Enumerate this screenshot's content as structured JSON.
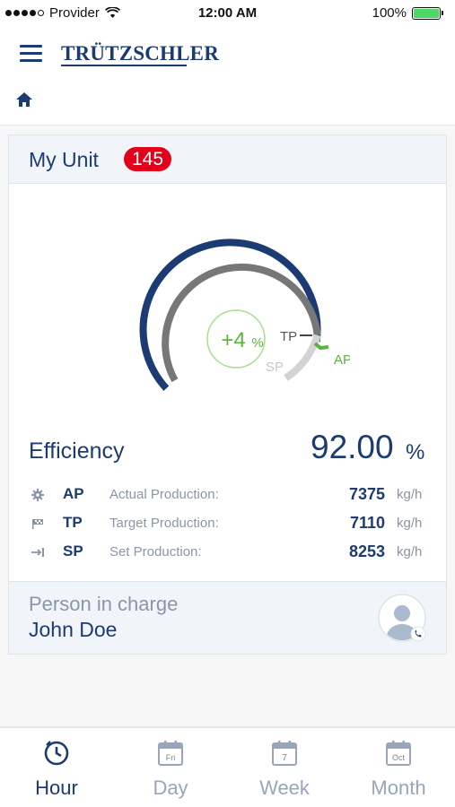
{
  "status_bar": {
    "carrier": "Provider",
    "time": "12:00 AM",
    "battery": "100%"
  },
  "header": {
    "logo": "TRÜTZSCHLER"
  },
  "unit": {
    "title": "My Unit",
    "count": "145",
    "gauge": {
      "delta_label": "+4",
      "delta_unit": "%",
      "tp_label": "TP",
      "sp_label": "SP",
      "ap_label": "AP",
      "outer_arc_color": "#1d3b73",
      "inner_arc_color": "#777777",
      "sp_arc_color": "#d3d3d3",
      "accent_color": "#5cb33c"
    },
    "efficiency": {
      "label": "Efficiency",
      "value": "92.00",
      "unit": "%"
    },
    "production": [
      {
        "icon": "gear-icon",
        "code": "AP",
        "name": "Actual Production:",
        "value": "7375",
        "unit": "kg/h"
      },
      {
        "icon": "flag-icon",
        "code": "TP",
        "name": "Target Production:",
        "value": "7110",
        "unit": "kg/h"
      },
      {
        "icon": "arrow-to-line-icon",
        "code": "SP",
        "name": "Set Production:",
        "value": "8253",
        "unit": "kg/h"
      }
    ],
    "person": {
      "label": "Person in charge",
      "name": "John Doe"
    }
  },
  "bottom_nav": [
    {
      "label": "Hour",
      "icon": "clock-icon",
      "active": true
    },
    {
      "label": "Day",
      "icon": "calendar-icon",
      "badge": "Fri"
    },
    {
      "label": "Week",
      "icon": "calendar-icon",
      "badge": "7"
    },
    {
      "label": "Month",
      "icon": "calendar-icon",
      "badge": "Oct"
    }
  ]
}
